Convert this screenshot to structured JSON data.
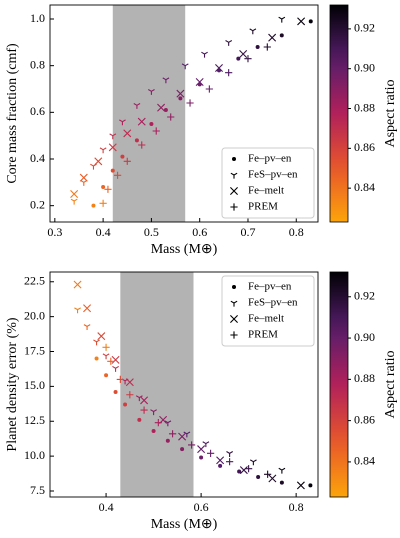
{
  "chart_data": [
    {
      "type": "scatter",
      "xlabel": "Mass (M⊕)",
      "ylabel": "Core mass fraction (cmf)",
      "xlim": [
        0.29,
        0.845
      ],
      "ylim": [
        0.13,
        1.06
      ],
      "xticks": [
        0.3,
        0.4,
        0.5,
        0.6,
        0.7,
        0.8
      ],
      "yticks": [
        0.2,
        0.4,
        0.6,
        0.8,
        {
          "value": 1,
          "label": "1.0"
        }
      ],
      "shade": [
        0.42,
        0.57
      ],
      "legend": "lower right",
      "colorbar": {
        "label": "Aspect ratio",
        "lim": [
          0.823,
          0.932
        ],
        "ticks": [
          0.84,
          0.86,
          0.88,
          {
            "value": 0.9,
            "label": "0.90"
          },
          0.92
        ]
      },
      "series": [
        {
          "name": "Fe–pv–en",
          "marker": "dot",
          "x": [
            0.38,
            0.4,
            0.42,
            0.44,
            0.47,
            0.5,
            0.53,
            0.56,
            0.6,
            0.64,
            0.68,
            0.72,
            0.77,
            0.83
          ],
          "values": [
            0.2,
            0.28,
            0.35,
            0.41,
            0.48,
            0.55,
            0.61,
            0.66,
            0.72,
            0.78,
            0.83,
            0.88,
            0.93,
            0.99
          ],
          "colors": [
            0.835,
            0.845,
            0.855,
            0.862,
            0.87,
            0.878,
            0.885,
            0.891,
            0.898,
            0.905,
            0.911,
            0.917,
            0.923,
            0.93
          ]
        },
        {
          "name": "FeS–pv–en",
          "marker": "tri",
          "x": [
            0.34,
            0.36,
            0.38,
            0.4,
            0.42,
            0.44,
            0.47,
            0.5,
            0.53,
            0.57,
            0.61,
            0.66,
            0.71,
            0.77
          ],
          "values": [
            0.22,
            0.3,
            0.37,
            0.44,
            0.5,
            0.56,
            0.63,
            0.69,
            0.74,
            0.8,
            0.85,
            0.9,
            0.95,
            1.0
          ],
          "colors": [
            0.835,
            0.845,
            0.855,
            0.862,
            0.87,
            0.878,
            0.885,
            0.891,
            0.898,
            0.905,
            0.911,
            0.917,
            0.923,
            0.93
          ]
        },
        {
          "name": "Fe–melt",
          "marker": "x",
          "x": [
            0.34,
            0.36,
            0.39,
            0.42,
            0.45,
            0.48,
            0.52,
            0.56,
            0.6,
            0.64,
            0.69,
            0.75,
            0.81
          ],
          "values": [
            0.25,
            0.32,
            0.39,
            0.45,
            0.51,
            0.56,
            0.62,
            0.68,
            0.73,
            0.79,
            0.85,
            0.92,
            0.99
          ],
          "colors": [
            0.838,
            0.848,
            0.857,
            0.865,
            0.872,
            0.88,
            0.887,
            0.894,
            0.901,
            0.908,
            0.915,
            0.922,
            0.929
          ]
        },
        {
          "name": "PREM",
          "marker": "plus",
          "x": [
            0.4,
            0.41,
            0.43,
            0.45,
            0.48,
            0.51,
            0.54,
            0.58,
            0.62,
            0.66,
            0.7,
            0.74
          ],
          "values": [
            0.21,
            0.27,
            0.33,
            0.39,
            0.46,
            0.52,
            0.58,
            0.64,
            0.7,
            0.77,
            0.83,
            0.88
          ],
          "colors": [
            0.835,
            0.846,
            0.856,
            0.864,
            0.872,
            0.88,
            0.887,
            0.894,
            0.901,
            0.908,
            0.915,
            0.922
          ]
        }
      ]
    },
    {
      "type": "scatter",
      "xlabel": "Mass (M⊕)",
      "ylabel": "Planet density error (%)",
      "xlim": [
        0.282,
        0.846
      ],
      "ylim": [
        7.07,
        23.2
      ],
      "xticks": [
        0.4,
        0.6,
        0.8
      ],
      "yticks": [
        7.5,
        {
          "value": 10,
          "label": "10.0"
        },
        12.5,
        {
          "value": 15,
          "label": "15.0"
        },
        17.5,
        {
          "value": 20,
          "label": "20.0"
        },
        22.5
      ],
      "shade": [
        0.43,
        0.584
      ],
      "legend": "upper right",
      "colorbar": {
        "label": "Aspect ratio",
        "lim": [
          0.823,
          0.932
        ],
        "ticks": [
          0.84,
          0.86,
          0.88,
          {
            "value": 0.9,
            "label": "0.90"
          },
          0.92
        ]
      },
      "series": [
        {
          "name": "Fe–pv–en",
          "marker": "dot",
          "x": [
            0.38,
            0.4,
            0.42,
            0.44,
            0.47,
            0.5,
            0.53,
            0.56,
            0.6,
            0.64,
            0.68,
            0.72,
            0.77,
            0.83
          ],
          "values": [
            17.0,
            15.8,
            14.6,
            13.7,
            12.6,
            11.8,
            11.1,
            10.5,
            9.9,
            9.3,
            8.9,
            8.5,
            8.1,
            7.9
          ],
          "colors": [
            0.835,
            0.845,
            0.855,
            0.862,
            0.87,
            0.878,
            0.885,
            0.891,
            0.898,
            0.905,
            0.911,
            0.917,
            0.923,
            0.93
          ]
        },
        {
          "name": "FeS–pv–en",
          "marker": "tri",
          "x": [
            0.34,
            0.36,
            0.38,
            0.4,
            0.42,
            0.44,
            0.47,
            0.5,
            0.53,
            0.57,
            0.61,
            0.66,
            0.71,
            0.77
          ],
          "values": [
            20.5,
            19.3,
            18.2,
            17.2,
            16.3,
            15.4,
            14.2,
            13.2,
            12.4,
            11.6,
            10.9,
            10.2,
            9.6,
            9.0
          ],
          "colors": [
            0.835,
            0.845,
            0.855,
            0.862,
            0.87,
            0.878,
            0.885,
            0.891,
            0.898,
            0.905,
            0.911,
            0.917,
            0.923,
            0.93
          ]
        },
        {
          "name": "Fe–melt",
          "marker": "x",
          "x": [
            0.34,
            0.36,
            0.39,
            0.42,
            0.45,
            0.48,
            0.52,
            0.56,
            0.6,
            0.64,
            0.69,
            0.75,
            0.81
          ],
          "values": [
            22.3,
            20.6,
            18.6,
            16.9,
            15.3,
            14.0,
            12.6,
            11.4,
            10.5,
            9.7,
            9.0,
            8.4,
            7.9
          ],
          "colors": [
            0.838,
            0.848,
            0.857,
            0.865,
            0.872,
            0.88,
            0.887,
            0.894,
            0.901,
            0.908,
            0.915,
            0.922,
            0.929
          ]
        },
        {
          "name": "PREM",
          "marker": "plus",
          "x": [
            0.4,
            0.41,
            0.43,
            0.45,
            0.48,
            0.51,
            0.54,
            0.58,
            0.62,
            0.66,
            0.7,
            0.74
          ],
          "values": [
            17.8,
            16.8,
            15.5,
            14.4,
            13.3,
            12.4,
            11.6,
            10.8,
            10.2,
            9.6,
            9.1,
            8.7
          ],
          "colors": [
            0.835,
            0.846,
            0.856,
            0.864,
            0.872,
            0.88,
            0.887,
            0.894,
            0.901,
            0.908,
            0.915,
            0.922
          ]
        }
      ]
    }
  ]
}
